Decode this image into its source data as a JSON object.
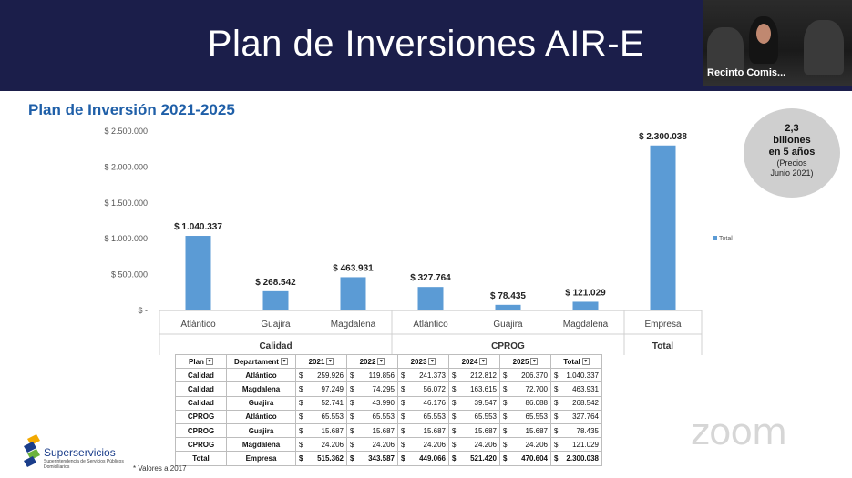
{
  "slide": {
    "title": "Plan de Inversiones AIR-E",
    "chart_title": "Plan de Inversión 2021-2025"
  },
  "video": {
    "participant_name": "Recinto Comis..."
  },
  "badge": {
    "line1": "2,3",
    "line2": "billones",
    "line3": "en 5 años",
    "line4": "(Precios",
    "line5": "Junio 2021)"
  },
  "chart_data": {
    "type": "bar",
    "title": "Plan de Inversión 2021-2025",
    "categories": [
      "Atlántico",
      "Guajira",
      "Magdalena",
      "Atlántico",
      "Guajira",
      "Magdalena",
      "Empresa"
    ],
    "groups": [
      {
        "label": "Calidad",
        "categories": [
          "Atlántico",
          "Guajira",
          "Magdalena"
        ]
      },
      {
        "label": "CPROG",
        "categories": [
          "Atlántico",
          "Guajira",
          "Magdalena"
        ]
      },
      {
        "label": "Total",
        "categories": [
          "Empresa"
        ]
      }
    ],
    "series": [
      {
        "name": "Total",
        "values": [
          1040337,
          268542,
          463931,
          327764,
          78435,
          121029,
          2300038
        ]
      }
    ],
    "data_labels": [
      "$ 1.040.337",
      "$ 268.542",
      "$ 463.931",
      "$ 327.764",
      "$ 78.435",
      "$ 121.029",
      "$ 2.300.038"
    ],
    "y_ticks": [
      0,
      500000,
      1000000,
      1500000,
      2000000,
      2500000
    ],
    "y_tick_labels": [
      "$ -",
      "$ 500.000",
      "$ 1.000.000",
      "$ 1.500.000",
      "$ 2.000.000",
      "$ 2.500.000"
    ],
    "ylim": [
      0,
      2500000
    ],
    "legend": "right",
    "grid": false,
    "bar_color": "#5b9bd5"
  },
  "table": {
    "headers": [
      "Plan",
      "Departament",
      "2021",
      "2022",
      "2023",
      "2024",
      "2025",
      "Total"
    ],
    "currency": "$",
    "rows": [
      {
        "plan": "Calidad",
        "dept": "Atlántico",
        "values": [
          "259.926",
          "119.856",
          "241.373",
          "212.812",
          "206.370",
          "1.040.337"
        ]
      },
      {
        "plan": "Calidad",
        "dept": "Magdalena",
        "values": [
          "97.249",
          "74.295",
          "56.072",
          "163.615",
          "72.700",
          "463.931"
        ]
      },
      {
        "plan": "Calidad",
        "dept": "Guajira",
        "values": [
          "52.741",
          "43.990",
          "46.176",
          "39.547",
          "86.088",
          "268.542"
        ]
      },
      {
        "plan": "CPROG",
        "dept": "Atlántico",
        "values": [
          "65.553",
          "65.553",
          "65.553",
          "65.553",
          "65.553",
          "327.764"
        ]
      },
      {
        "plan": "CPROG",
        "dept": "Guajira",
        "values": [
          "15.687",
          "15.687",
          "15.687",
          "15.687",
          "15.687",
          "78.435"
        ]
      },
      {
        "plan": "CPROG",
        "dept": "Magdalena",
        "values": [
          "24.206",
          "24.206",
          "24.206",
          "24.206",
          "24.206",
          "121.029"
        ]
      },
      {
        "plan": "Total",
        "dept": "Empresa",
        "values": [
          "515.362",
          "343.587",
          "449.066",
          "521.420",
          "470.604",
          "2.300.038"
        ]
      }
    ]
  },
  "footnote": "* Valores a 2017",
  "logo": {
    "name": "Superservicios",
    "subtitle": "Superintendencia de Servicios Públicos Domiciliarios"
  },
  "watermark": "zoom"
}
